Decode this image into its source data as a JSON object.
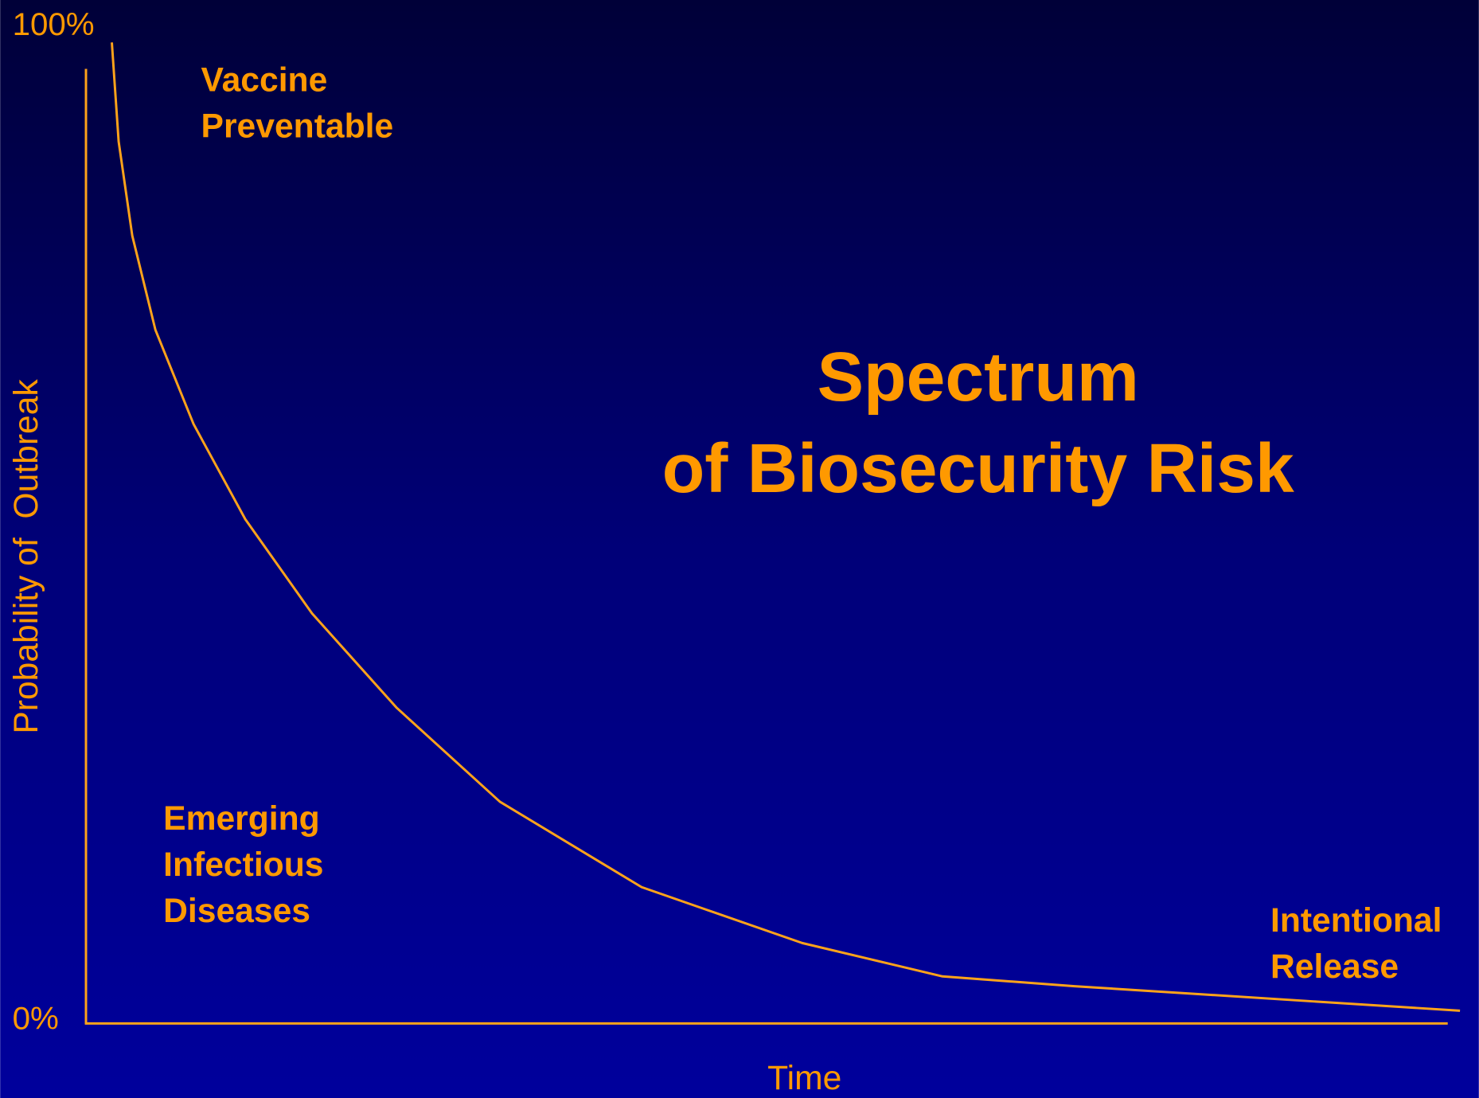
{
  "chart_data": {
    "type": "line",
    "title": [
      "Spectrum",
      "of Biosecurity Risk"
    ],
    "xlabel": "Time",
    "ylabel": "Probability of  Outbreak",
    "annotations": [
      [
        "Vaccine",
        "Preventable"
      ],
      [
        "Emerging",
        "Infectious",
        "Diseases"
      ],
      [
        "Intentional",
        "Release"
      ]
    ],
    "x": [
      1.9,
      2.4,
      3.4,
      5.1,
      7.9,
      11.7,
      16.6,
      22.8,
      30.4,
      40.8,
      52.6,
      62.9,
      72.6,
      100.9
    ],
    "series": [
      {
        "color": "#ffa31a",
        "values": [
          100,
          89.9,
          80.3,
          70.7,
          61.1,
          51.4,
          41.8,
          32.2,
          22.6,
          13.9,
          8.2,
          4.8,
          3.8,
          1.3
        ]
      }
    ],
    "xlim": [
      0,
      100
    ],
    "ylim": [
      0,
      100
    ],
    "yticks": [
      {
        "value": 0,
        "label": "0%"
      },
      {
        "value": 100,
        "label": "100%"
      }
    ]
  }
}
